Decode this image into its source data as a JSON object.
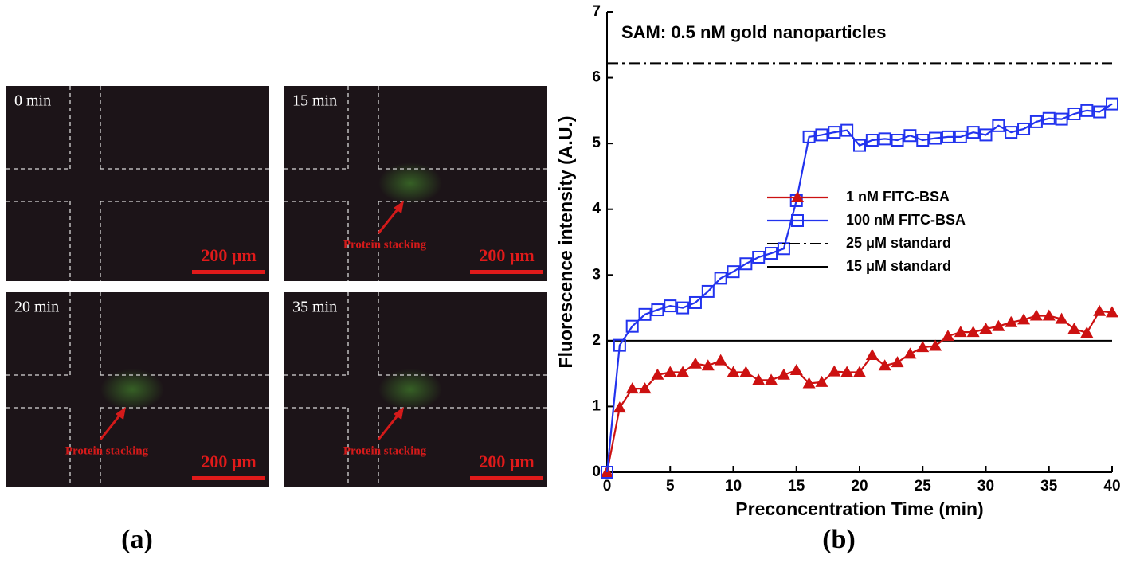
{
  "images": [
    {
      "time": "0 min",
      "scale_bar": "200 μm"
    },
    {
      "time": "15 min",
      "annotation": "Protein stacking",
      "scale_bar": "200 μm"
    },
    {
      "time": "20 min",
      "annotation": "Protein stacking",
      "scale_bar": "200 μm"
    },
    {
      "time": "35 min",
      "annotation": "Protein stacking",
      "scale_bar": "200 μm"
    }
  ],
  "panel_labels": [
    "(a)",
    "(b)"
  ],
  "chart_data": {
    "type": "line",
    "annotation": "SAM: 0.5 nM gold nanoparticles",
    "x_label": "Preconcentration Time (min)",
    "y_label": "Fluorescence intensity (A.U.)",
    "x": [
      0,
      1,
      2,
      3,
      4,
      5,
      6,
      7,
      8,
      9,
      10,
      11,
      12,
      13,
      14,
      15,
      16,
      17,
      18,
      19,
      20,
      21,
      22,
      23,
      24,
      25,
      26,
      27,
      28,
      29,
      30,
      31,
      32,
      33,
      34,
      35,
      36,
      37,
      38,
      39,
      40
    ],
    "series": [
      {
        "name": "1 nM FITC-BSA",
        "color": "#cc1111",
        "marker": "triangle",
        "values": [
          0,
          0.98,
          1.27,
          1.27,
          1.48,
          1.52,
          1.52,
          1.65,
          1.62,
          1.7,
          1.52,
          1.52,
          1.4,
          1.4,
          1.48,
          1.55,
          1.35,
          1.37,
          1.53,
          1.52,
          1.52,
          1.78,
          1.62,
          1.67,
          1.8,
          1.9,
          1.92,
          2.07,
          2.13,
          2.13,
          2.18,
          2.22,
          2.28,
          2.32,
          2.38,
          2.38,
          2.33,
          2.18,
          2.12,
          2.45,
          2.43
        ]
      },
      {
        "name": "100 nM FITC-BSA",
        "color": "#2233ee",
        "marker": "square",
        "values": [
          0,
          1.93,
          2.22,
          2.4,
          2.47,
          2.53,
          2.5,
          2.58,
          2.75,
          2.95,
          3.05,
          3.17,
          3.27,
          3.33,
          3.4,
          4.13,
          5.1,
          5.13,
          5.17,
          5.2,
          4.97,
          5.05,
          5.07,
          5.05,
          5.12,
          5.05,
          5.08,
          5.1,
          5.1,
          5.17,
          5.13,
          5.27,
          5.17,
          5.22,
          5.33,
          5.38,
          5.37,
          5.45,
          5.5,
          5.48,
          5.6
        ]
      }
    ],
    "reference_lines": [
      {
        "name": "25 μM standard",
        "value": 6.22,
        "style": "dashdot",
        "color": "#000000"
      },
      {
        "name": "15 μM standard",
        "value": 2.0,
        "style": "solid",
        "color": "#000000"
      }
    ],
    "xlim": [
      0,
      40
    ],
    "xticks": [
      0,
      5,
      10,
      15,
      20,
      25,
      30,
      35,
      40
    ],
    "ylim": [
      0,
      7
    ],
    "yticks": [
      0,
      1,
      2,
      3,
      4,
      5,
      6,
      7
    ],
    "grid": false
  }
}
